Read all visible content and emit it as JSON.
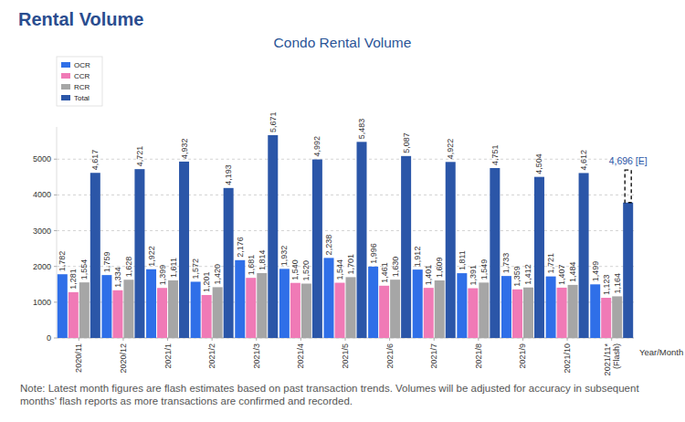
{
  "header": {
    "title": "Rental Volume"
  },
  "chart_data": {
    "type": "bar",
    "title": "Condo Rental Volume",
    "x_label": "Year/Month",
    "note": "Note: Latest month figures are flash estimates based on past transaction trends. Volumes will be adjusted for accuracy in subsequent months' flash reports as more transactions are confirmed and recorded.",
    "categories": [
      "2020/11",
      "2020/12",
      "2021/1",
      "2021/2",
      "2021/3",
      "2021/4",
      "2021/5",
      "2021/6",
      "2021/7",
      "2021/8",
      "2021/9",
      "2021/10",
      "2021/11* (Flash)"
    ],
    "series": [
      {
        "name": "OCR",
        "color": "#2f6fe8",
        "values": [
          1782,
          1759,
          1922,
          1572,
          2176,
          1932,
          2238,
          1996,
          1912,
          1811,
          1733,
          1721,
          1499
        ],
        "value_labels": [
          "1,782",
          "1,759",
          "1,922",
          "1,572",
          "2,176",
          "1,932",
          "2,238",
          "1,996",
          "1,912",
          "1,811",
          "1,733",
          "1,721",
          "1,499"
        ]
      },
      {
        "name": "CCR",
        "color": "#f07ab6",
        "values": [
          1281,
          1334,
          1399,
          1201,
          1681,
          1540,
          1544,
          1461,
          1401,
          1391,
          1359,
          1407,
          1123
        ],
        "value_labels": [
          "1,281",
          "1,334",
          "1,399",
          "1,201",
          "1,681",
          "1,540",
          "1,544",
          "1,461",
          "1,401",
          "1,391",
          "1,359",
          "1,407",
          "1,123"
        ]
      },
      {
        "name": "RCR",
        "color": "#a6a6a6",
        "values": [
          1554,
          1628,
          1611,
          1420,
          1814,
          1520,
          1701,
          1630,
          1609,
          1549,
          1412,
          1484,
          1164
        ],
        "value_labels": [
          "1,554",
          "1,628",
          "1,611",
          "1,420",
          "1,814",
          "1,520",
          "1,701",
          "1,630",
          "1,609",
          "1,549",
          "1,412",
          "1,484",
          "1,164"
        ]
      },
      {
        "name": "Total",
        "color": "#2b56a8",
        "values": [
          4617,
          4721,
          4932,
          4193,
          5671,
          4992,
          5483,
          5087,
          4922,
          4751,
          4504,
          4612,
          3786
        ],
        "value_labels": [
          "4,617",
          "4,721",
          "4,932",
          "4,193",
          "5,671",
          "4,992",
          "5,483",
          "5,087",
          "4,922",
          "4,751",
          "4,504",
          "4,612",
          null
        ]
      }
    ],
    "annotations": [
      {
        "text": "4,696 [E]",
        "value": 4696,
        "series": 3,
        "category_index": 12
      }
    ],
    "ylim": [
      0,
      5900
    ],
    "yticks": [
      0,
      1000,
      2000,
      3000,
      4000,
      5000
    ],
    "grid": true,
    "legend": "upper left",
    "data_labels": true
  }
}
